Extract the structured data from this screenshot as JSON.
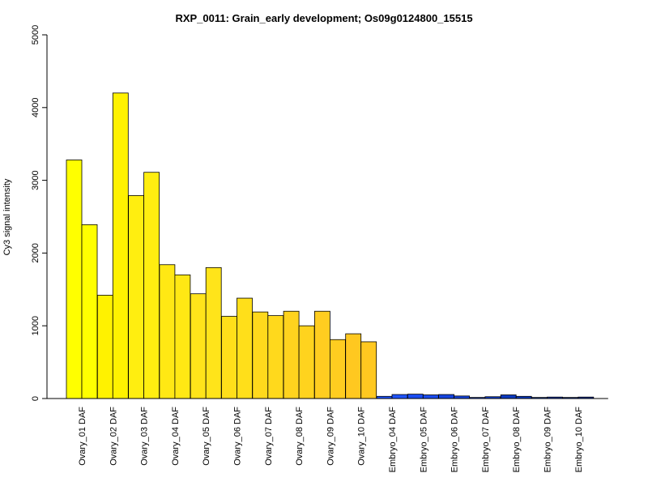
{
  "chart_data": {
    "type": "bar",
    "title": "RXP_0011: Grain_early development; Os09g0124800_15515",
    "xlabel": "",
    "ylabel": "Cy3 signal intensity",
    "ylim": [
      0,
      5000
    ],
    "yticks": [
      0,
      1000,
      2000,
      3000,
      4000,
      5000
    ],
    "grid": false,
    "legend": "none",
    "categories": [
      "Ovary_01 DAF",
      "Ovary_02 DAF",
      "Ovary_03 DAF",
      "Ovary_04 DAF",
      "Ovary_05 DAF",
      "Ovary_06 DAF",
      "Ovary_07 DAF",
      "Ovary_08 DAF",
      "Ovary_09 DAF",
      "Ovary_10 DAF",
      "Embryo_04 DAF",
      "Embryo_05 DAF",
      "Embryo_06 DAF",
      "Embryo_07 DAF",
      "Embryo_08 DAF",
      "Embryo_09 DAF",
      "Embryo_10 DAF"
    ],
    "series": [
      {
        "values": [
          3280,
          1420,
          2790,
          1840,
          1440,
          1130,
          1190,
          1200,
          1200,
          890,
          30,
          60,
          55,
          15,
          50,
          15,
          15
        ]
      },
      {
        "values": [
          2390,
          4200,
          3110,
          1700,
          1800,
          1380,
          1140,
          1000,
          810,
          780,
          55,
          50,
          35,
          25,
          30,
          20,
          20
        ]
      }
    ],
    "colors": [
      "#ffff00",
      "#fff200",
      "#ffee10",
      "#ffe814",
      "#ffe41a",
      "#ffdf1a",
      "#ffd91c",
      "#ffd31e",
      "#ffcd20",
      "#ffc820",
      "#1f55ff",
      "#1a4cf0",
      "#1545e0",
      "#1040d0",
      "#0c3ac0",
      "#0a35b0",
      "#0830a0"
    ]
  }
}
